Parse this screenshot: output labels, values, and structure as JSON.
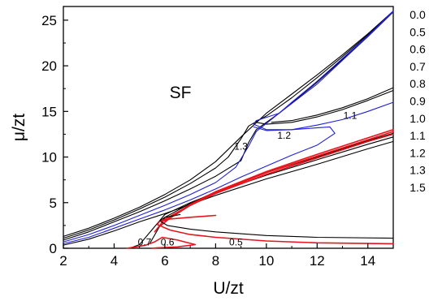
{
  "chart_data": {
    "type": "line",
    "title": "",
    "xlabel": "U/zt",
    "ylabel": "μ/zt",
    "xlim": [
      2,
      15
    ],
    "ylim": [
      0,
      26.5
    ],
    "x_ticks": [
      "2",
      "4",
      "6",
      "8",
      "10",
      "12",
      "14"
    ],
    "y_ticks": [
      "0",
      "5",
      "10",
      "15",
      "20",
      "25"
    ],
    "grid": false,
    "legend_placement": "right-outside",
    "legend_labels": [
      "0.0",
      "0.5",
      "0.6",
      "0.7",
      "0.8",
      "0.9",
      "1.0",
      "1.1",
      "1.2",
      "1.3",
      "1.5"
    ],
    "region_label": "SF",
    "annotations": [
      {
        "text": "0.7",
        "x": 5.2,
        "y": 0.3
      },
      {
        "text": "0.6",
        "x": 6.1,
        "y": 0.3
      },
      {
        "text": "0.5",
        "x": 8.8,
        "y": 0.3
      },
      {
        "text": "1.3",
        "x": 9.0,
        "y": 10.8
      },
      {
        "text": "1.2",
        "x": 10.7,
        "y": 12.0
      },
      {
        "text": "1.1",
        "x": 13.3,
        "y": 14.2
      }
    ],
    "colors": {
      "black": "#000000",
      "blue": "#1f1fd6",
      "red": "#e8141b"
    },
    "series": [
      {
        "color": "black",
        "x": [
          2,
          3,
          4,
          5,
          6,
          7,
          8,
          9,
          10,
          11,
          12,
          13,
          14,
          15
        ],
        "y": [
          1.3,
          2.2,
          3.3,
          4.5,
          5.9,
          7.5,
          9.5,
          12.2,
          14.8,
          16.9,
          19.0,
          21.2,
          23.5,
          26.0
        ]
      },
      {
        "color": "black",
        "x": [
          10.2,
          11,
          12,
          13,
          14,
          15
        ],
        "y": [
          13.8,
          14.0,
          14.6,
          15.4,
          16.4,
          17.6
        ]
      },
      {
        "color": "black",
        "x": [
          2,
          3,
          4,
          5,
          6,
          7,
          8,
          8.5,
          9,
          9.3,
          10,
          11,
          12,
          13,
          14,
          15
        ],
        "y": [
          1.1,
          2.0,
          3.1,
          4.3,
          5.6,
          7.1,
          8.8,
          10.0,
          12.0,
          13.4,
          14.5,
          16.5,
          18.7,
          21.0,
          23.4,
          26.0
        ]
      },
      {
        "color": "black",
        "x": [
          9.6,
          10,
          11,
          12,
          13,
          14,
          15
        ],
        "y": [
          13.8,
          13.6,
          13.8,
          14.4,
          15.2,
          16.2,
          17.3
        ]
      },
      {
        "color": "black",
        "x": [
          2,
          3,
          4,
          5,
          6,
          7,
          8,
          9,
          9.3,
          9.6,
          10.5,
          12,
          13,
          14,
          15
        ],
        "y": [
          0.9,
          1.8,
          2.9,
          4.0,
          5.2,
          6.5,
          7.9,
          9.6,
          11.6,
          13.0,
          14.8,
          18.2,
          20.7,
          23.2,
          25.9
        ]
      },
      {
        "color": "blue",
        "x": [
          2,
          3,
          4,
          5,
          6,
          7,
          8,
          8.8,
          9.3,
          9.6,
          10.5,
          11,
          12,
          13,
          14,
          15
        ],
        "y": [
          0.7,
          1.5,
          2.5,
          3.6,
          4.7,
          5.9,
          7.2,
          8.9,
          11.2,
          12.8,
          14.8,
          16.0,
          18.3,
          20.8,
          23.3,
          26.0
        ]
      },
      {
        "color": "blue",
        "x": [
          9.5,
          10,
          11,
          12,
          13,
          14,
          15
        ],
        "y": [
          13.3,
          12.9,
          13.0,
          13.5,
          14.1,
          15.0,
          16.0
        ]
      },
      {
        "color": "blue",
        "x": [
          2,
          3,
          4,
          5,
          6,
          7,
          8,
          9,
          10,
          11,
          12,
          12.7,
          12.5,
          11,
          10,
          9.5,
          9.6,
          10.5,
          12,
          13,
          14,
          15
        ],
        "y": [
          0.5,
          1.2,
          2.2,
          3.2,
          4.2,
          5.3,
          6.5,
          7.8,
          9.0,
          10.2,
          11.3,
          12.6,
          13.3,
          13.0,
          13.0,
          13.6,
          14.0,
          14.8,
          18.0,
          20.6,
          23.2,
          25.9
        ]
      },
      {
        "color": "black",
        "x": [
          2,
          3,
          4,
          5,
          6,
          7,
          8,
          10,
          12,
          14,
          15
        ],
        "y": [
          0.35,
          1.0,
          1.9,
          2.9,
          3.8,
          4.8,
          5.8,
          7.6,
          9.2,
          10.9,
          11.7
        ]
      },
      {
        "color": "black",
        "x": [
          4.6,
          5,
          6,
          7,
          8,
          10,
          12,
          14,
          15
        ],
        "y": [
          0.0,
          0.4,
          3.7,
          5.0,
          6.1,
          8.0,
          9.7,
          11.4,
          12.2
        ]
      },
      {
        "color": "black",
        "x": [
          5.4,
          6,
          7,
          8,
          10,
          12,
          14,
          15
        ],
        "y": [
          0.5,
          3.4,
          4.9,
          6.2,
          8.3,
          10.0,
          11.8,
          12.6
        ]
      },
      {
        "color": "red",
        "x": [
          5.6,
          6,
          7,
          8,
          10,
          12,
          14,
          15
        ],
        "y": [
          1.8,
          3.2,
          4.7,
          6.0,
          8.1,
          9.9,
          11.7,
          12.5
        ]
      },
      {
        "color": "red",
        "x": [
          5.8,
          6.2,
          7,
          8,
          10,
          12,
          14,
          15
        ],
        "y": [
          2.4,
          3.3,
          4.7,
          6.1,
          8.3,
          10.1,
          11.9,
          12.8
        ]
      },
      {
        "color": "red",
        "x": [
          6.0,
          7,
          8,
          10,
          12,
          14,
          15
        ],
        "y": [
          3.0,
          4.8,
          6.2,
          8.4,
          10.3,
          12.1,
          13.0
        ]
      },
      {
        "color": "red",
        "x": [
          4.5,
          5.2,
          5.6,
          5.9,
          6.5,
          7.2,
          6.5,
          5.7,
          5.5
        ],
        "y": [
          0.0,
          0.3,
          0.7,
          1.2,
          0.9,
          0.4,
          0.15,
          0.05,
          0.0
        ]
      },
      {
        "color": "red",
        "x": [
          15,
          12,
          10,
          8,
          7,
          6.2,
          5.7,
          5.8,
          6.2,
          7,
          8
        ],
        "y": [
          0.5,
          0.6,
          0.8,
          1.2,
          1.5,
          2.0,
          2.6,
          3.0,
          3.2,
          3.4,
          3.6
        ]
      },
      {
        "color": "black",
        "x": [
          15,
          12,
          10,
          8,
          7,
          6.1,
          5.8,
          6.0,
          6.6
        ],
        "y": [
          1.1,
          1.2,
          1.4,
          1.8,
          2.1,
          2.5,
          3.0,
          3.4,
          3.7
        ]
      }
    ]
  }
}
